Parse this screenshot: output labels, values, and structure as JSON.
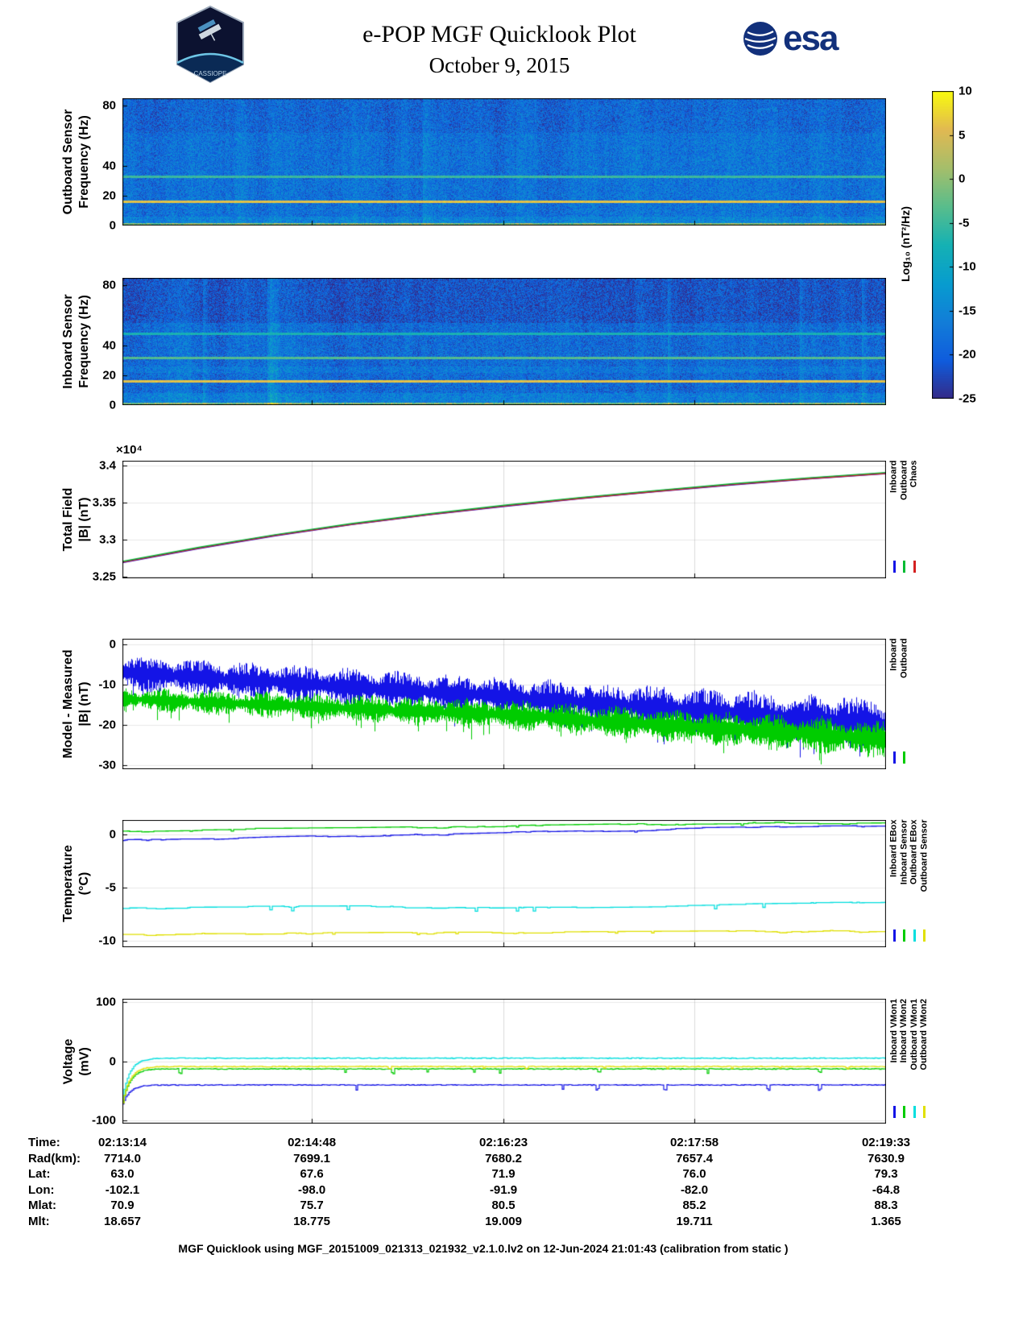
{
  "header": {
    "title": "e-POP MGF Quicklook Plot",
    "date": "October 9, 2015",
    "esa_logo_text": "esa",
    "mission_patch_text": "CASSIOPE",
    "esa_blue": "#12307b"
  },
  "colorbar": {
    "label": "Log₁₀ (nT²/Hz)",
    "ticks": [
      10,
      5,
      0,
      -5,
      -10,
      -15,
      -20,
      -25
    ],
    "range": [
      -25,
      10
    ],
    "colormap": [
      "#352a87",
      "#0f5cdd",
      "#127dd8",
      "#079ccf",
      "#15b1b4",
      "#59bd8c",
      "#a5be6b",
      "#e1b952",
      "#f9fb0e"
    ]
  },
  "time_axis": {
    "labels": [
      "02:13:14",
      "02:14:48",
      "02:16:23",
      "02:17:58",
      "02:19:33"
    ],
    "fractions": [
      0,
      0.248,
      0.499,
      0.749,
      1
    ]
  },
  "chart_data": [
    {
      "id": "outboard-spectrogram",
      "type": "heatmap",
      "ylabel_lines": [
        "Outboard Sensor",
        "Frequency (Hz)"
      ],
      "ylim": [
        0,
        85
      ],
      "yticks": [
        0,
        20,
        40,
        80
      ],
      "clim": [
        -25,
        10
      ],
      "background_level": -17.5,
      "noise_spread": 4.5,
      "dark_above": 62,
      "dark_delta": 1.4,
      "soft_bands": [
        {
          "freq": 3,
          "width": 3,
          "boost": 2
        }
      ],
      "bands": [
        {
          "freq": 33,
          "width": 0.8,
          "level": -5
        },
        {
          "freq": 16,
          "width": 0.9,
          "level": 6
        }
      ],
      "bottom_bright": true
    },
    {
      "id": "inboard-spectrogram",
      "type": "heatmap",
      "ylabel_lines": [
        "Inboard Sensor",
        "Frequency (Hz)"
      ],
      "ylim": [
        0,
        85
      ],
      "yticks": [
        0,
        20,
        40,
        80
      ],
      "clim": [
        -25,
        10
      ],
      "background_level": -18.5,
      "noise_spread": 4.5,
      "dark_above": 55,
      "dark_delta": 2.4,
      "soft_bands": [
        {
          "freq": 4,
          "width": 4.5,
          "boost": 2.5
        },
        {
          "freq": 24,
          "width": 2,
          "boost": 1.5
        }
      ],
      "bands": [
        {
          "freq": 48,
          "width": 0.8,
          "level": -7.5
        },
        {
          "freq": 32,
          "width": 0.8,
          "level": -3.5
        },
        {
          "freq": 16,
          "width": 0.9,
          "level": 6
        }
      ],
      "bottom_bright": true
    },
    {
      "id": "total-field",
      "type": "line",
      "ylabel_lines": [
        "Total Field",
        "|B| (nT)"
      ],
      "y_exponent": "×10⁴",
      "ylim": [
        3.248,
        3.406
      ],
      "yticks": [
        3.25,
        3.3,
        3.35,
        3.4
      ],
      "x": [
        0,
        0.1,
        0.2,
        0.3,
        0.4,
        0.5,
        0.6,
        0.7,
        0.8,
        0.9,
        1
      ],
      "series": [
        {
          "name": "Inboard",
          "color": "#1414e6",
          "values": [
            3.2695,
            3.2885,
            3.3055,
            3.3205,
            3.3335,
            3.345,
            3.3555,
            3.365,
            3.374,
            3.382,
            3.389
          ]
        },
        {
          "name": "Outboard",
          "color": "#00bb33",
          "values": [
            3.2695,
            3.2885,
            3.3055,
            3.3205,
            3.3335,
            3.345,
            3.3555,
            3.365,
            3.374,
            3.382,
            3.389
          ]
        },
        {
          "name": "Chaos",
          "color": "#d42020",
          "values": [
            3.2695,
            3.2885,
            3.3055,
            3.3205,
            3.3335,
            3.345,
            3.3555,
            3.365,
            3.374,
            3.382,
            3.389
          ]
        }
      ]
    },
    {
      "id": "model-measured",
      "type": "noisy-band",
      "ylabel_lines": [
        "Model - Measured",
        "|B| (nT)"
      ],
      "ylim": [
        -31,
        1.4
      ],
      "yticks": [
        0,
        -10,
        -20,
        -30
      ],
      "series": [
        {
          "name": "Inboard",
          "color": "#1414e6",
          "center": [
            -7,
            -13,
            -20
          ],
          "amplitude": [
            4.5,
            5,
            7
          ]
        },
        {
          "name": "Outboard",
          "color": "#00cc00",
          "center": [
            -13.5,
            -17.5,
            -23.5
          ],
          "amplitude": [
            3,
            4,
            5
          ]
        }
      ]
    },
    {
      "id": "temperature",
      "type": "line-step",
      "ylabel_lines": [
        "Temperature",
        "(°C)"
      ],
      "ylim": [
        -10.6,
        1.4
      ],
      "yticks": [
        0,
        -5,
        -10
      ],
      "series": [
        {
          "name": "Inboard EBox",
          "color": "#1414e6",
          "spike_rate": 0.008,
          "spike_depth": 0.12,
          "points": [
            [
              0,
              -0.55
            ],
            [
              0.12,
              -0.5
            ],
            [
              0.2,
              -0.3
            ],
            [
              0.3,
              -0.15
            ],
            [
              0.45,
              0.1
            ],
            [
              0.6,
              0.35
            ],
            [
              0.75,
              0.55
            ],
            [
              0.9,
              0.7
            ],
            [
              1,
              0.75
            ]
          ]
        },
        {
          "name": "Inboard Sensor",
          "color": "#00cc00",
          "spike_rate": 0.008,
          "spike_depth": 0.15,
          "points": [
            [
              0,
              0.35
            ],
            [
              0.15,
              0.5
            ],
            [
              0.3,
              0.55
            ],
            [
              0.5,
              0.75
            ],
            [
              0.7,
              0.95
            ],
            [
              0.85,
              1.05
            ],
            [
              1,
              1.1
            ]
          ]
        },
        {
          "name": "Outboard EBox",
          "color": "#00dede",
          "spike_rate": 0.01,
          "spike_depth": 0.35,
          "points": [
            [
              0,
              -6.9
            ],
            [
              0.2,
              -6.85
            ],
            [
              0.4,
              -6.8
            ],
            [
              0.6,
              -6.75
            ],
            [
              0.8,
              -6.6
            ],
            [
              1,
              -6.45
            ]
          ]
        },
        {
          "name": "Outboard Sensor",
          "color": "#e0e000",
          "spike_rate": 0.01,
          "spike_depth": 0.15,
          "points": [
            [
              0,
              -9.4
            ],
            [
              0.25,
              -9.35
            ],
            [
              0.5,
              -9.3
            ],
            [
              0.75,
              -9.2
            ],
            [
              1,
              -9.1
            ]
          ]
        }
      ]
    },
    {
      "id": "voltage",
      "type": "line-flat",
      "ylabel_lines": [
        "Voltage",
        "(mV)"
      ],
      "ylim": [
        -105,
        105
      ],
      "yticks": [
        100,
        0,
        -100
      ],
      "series": [
        {
          "name": "Inboard VMon1",
          "color": "#1414e6",
          "base": -40,
          "start": -72,
          "dip": 10,
          "dip_rate": 0.012
        },
        {
          "name": "Inboard VMon2",
          "color": "#00cc00",
          "base": -13,
          "start": -70,
          "dip": 8,
          "dip_rate": 0.02
        },
        {
          "name": "Outboard VMon1",
          "color": "#00dede",
          "base": 5,
          "start": -60,
          "dip": 0,
          "dip_rate": 0
        },
        {
          "name": "Outboard VMon2",
          "color": "#e0e000",
          "base": -9,
          "start": -70,
          "dip": 4,
          "dip_rate": 0.01
        }
      ]
    }
  ],
  "info_table": {
    "rows": [
      {
        "label": "Time:",
        "values": [
          "02:13:14",
          "02:14:48",
          "02:16:23",
          "02:17:58",
          "02:19:33"
        ]
      },
      {
        "label": "Rad(km):",
        "values": [
          "7714.0",
          "7699.1",
          "7680.2",
          "7657.4",
          "7630.9"
        ]
      },
      {
        "label": "Lat:",
        "values": [
          "63.0",
          "67.6",
          "71.9",
          "76.0",
          "79.3"
        ]
      },
      {
        "label": "Lon:",
        "values": [
          "-102.1",
          "-98.0",
          "-91.9",
          "-82.0",
          "-64.8"
        ]
      },
      {
        "label": "Mlat:",
        "values": [
          "70.9",
          "75.7",
          "80.5",
          "85.2",
          "88.3"
        ]
      },
      {
        "label": "Mlt:",
        "values": [
          "18.657",
          "18.775",
          "19.009",
          "19.711",
          "1.365"
        ]
      }
    ]
  },
  "footer": "MGF Quicklook using MGF_20151009_021313_021932_v2.1.0.lv2 on 12-Jun-2024 21:01:43 (calibration from static )"
}
